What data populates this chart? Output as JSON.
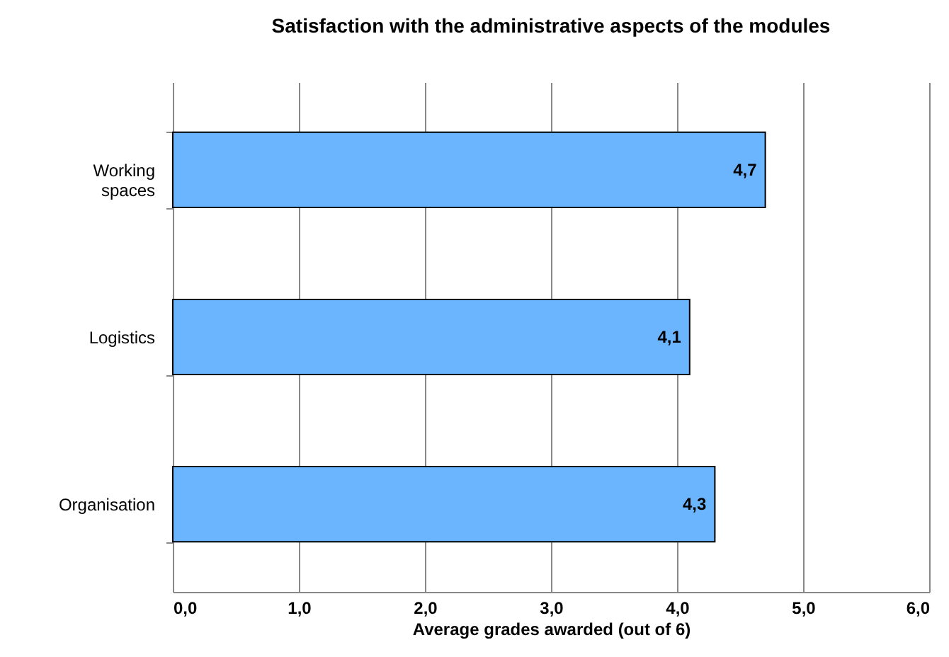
{
  "chart_data": {
    "type": "bar",
    "orientation": "horizontal",
    "title": "Satisfaction with the administrative aspects of the modules",
    "xlabel": "Average grades awarded (out of 6)",
    "categories": [
      "Working spaces",
      "Logistics",
      "Organisation"
    ],
    "values": [
      4.7,
      4.1,
      4.3
    ],
    "value_labels": [
      "4,7",
      "4,1",
      "4,3"
    ],
    "color": "#6bb5ff",
    "xlim": [
      0,
      6
    ],
    "xticks": [
      {
        "value": 0,
        "label": "0,0"
      },
      {
        "value": 1,
        "label": "1,0"
      },
      {
        "value": 2,
        "label": "2,0"
      },
      {
        "value": 3,
        "label": "3,0"
      },
      {
        "value": 4,
        "label": "4,0"
      },
      {
        "value": 5,
        "label": "5,0"
      },
      {
        "value": 6,
        "label": "6,0"
      }
    ],
    "grid": "x"
  }
}
